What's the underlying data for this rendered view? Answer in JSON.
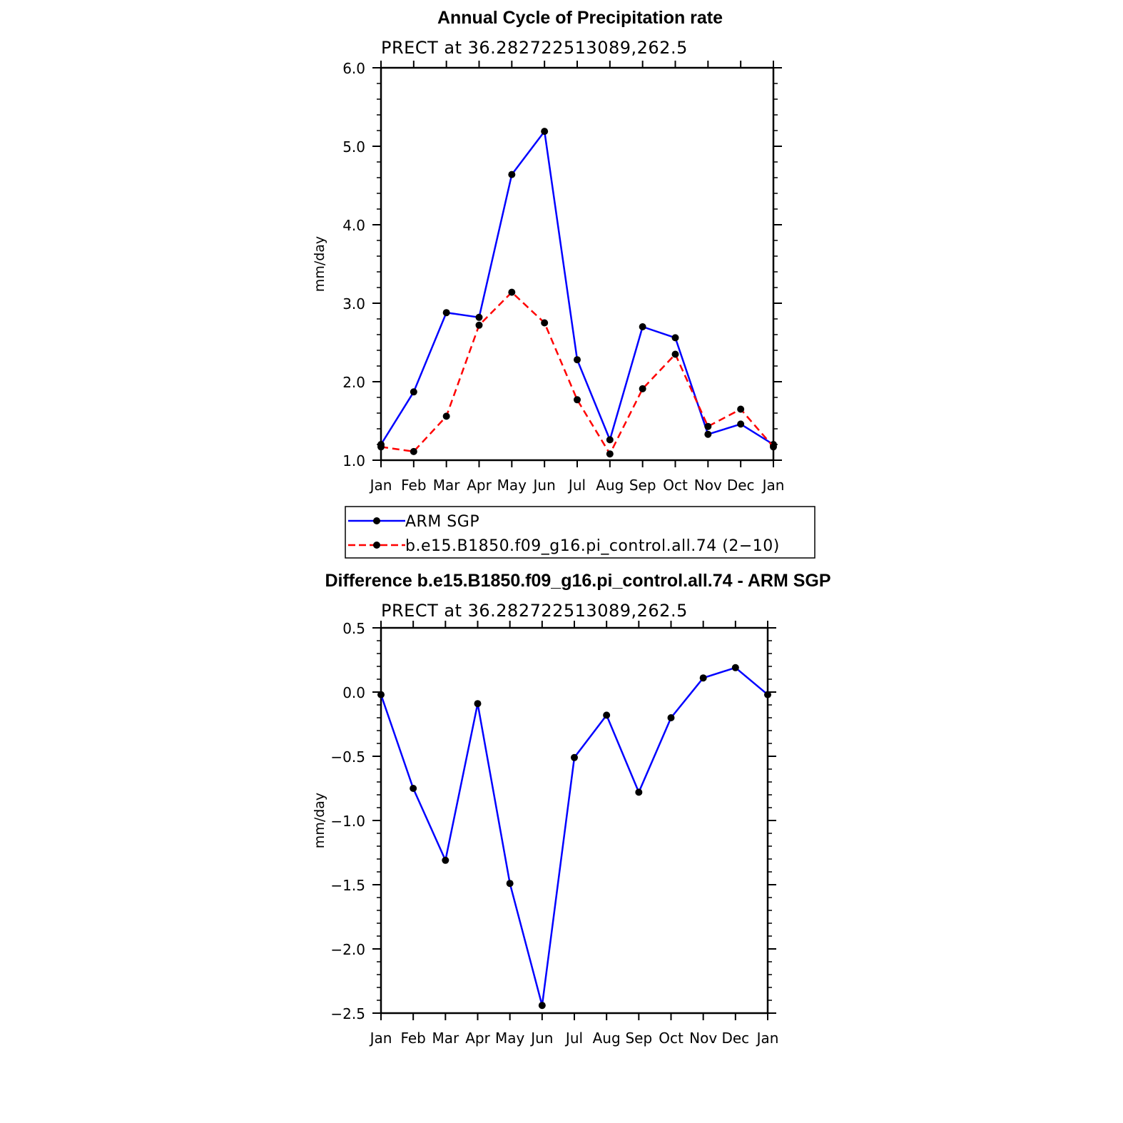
{
  "chart_data": [
    {
      "type": "line",
      "title": "Annual Cycle of Precipitation rate",
      "subtitle": "PRECT at 36.282722513089,262.5",
      "xlabel": "",
      "ylabel": "mm/day",
      "categories": [
        "Jan",
        "Feb",
        "Mar",
        "Apr",
        "May",
        "Jun",
        "Jul",
        "Aug",
        "Sep",
        "Oct",
        "Nov",
        "Dec",
        "Jan"
      ],
      "ylim": [
        1.0,
        6.0
      ],
      "yticks": [
        "1.0",
        "2.0",
        "3.0",
        "4.0",
        "5.0",
        "6.0"
      ],
      "series": [
        {
          "name": "ARM SGP",
          "color": "#0000ff",
          "style": "solid",
          "values": [
            1.2,
            1.87,
            2.88,
            2.82,
            4.64,
            5.19,
            2.28,
            1.26,
            2.7,
            2.56,
            1.33,
            1.46,
            1.2
          ]
        },
        {
          "name": "b.e15.B1850.f09_g16.pi_control.all.74 (2−10)",
          "color": "#ff0000",
          "style": "dashed",
          "values": [
            1.17,
            1.11,
            1.56,
            2.72,
            3.14,
            2.75,
            1.77,
            1.08,
            1.91,
            2.35,
            1.43,
            1.65,
            1.17
          ]
        }
      ],
      "legend": "bottom"
    },
    {
      "type": "line",
      "title": "Difference b.e15.B1850.f09_g16.pi_control.all.74 - ARM SGP",
      "subtitle": "PRECT at 36.282722513089,262.5",
      "xlabel": "",
      "ylabel": "mm/day",
      "categories": [
        "Jan",
        "Feb",
        "Mar",
        "Apr",
        "May",
        "Jun",
        "Jul",
        "Aug",
        "Sep",
        "Oct",
        "Nov",
        "Dec",
        "Jan"
      ],
      "ylim": [
        -2.5,
        0.5
      ],
      "yticks": [
        "−2.5",
        "−2.0",
        "−1.5",
        "−1.0",
        "−0.5",
        "0.0",
        "0.5"
      ],
      "series": [
        {
          "name": "Difference",
          "color": "#0000ff",
          "style": "solid",
          "values": [
            -0.02,
            -0.75,
            -1.31,
            -0.09,
            -1.49,
            -2.44,
            -0.51,
            -0.18,
            -0.78,
            -0.2,
            0.11,
            0.19,
            -0.02
          ]
        }
      ]
    }
  ]
}
